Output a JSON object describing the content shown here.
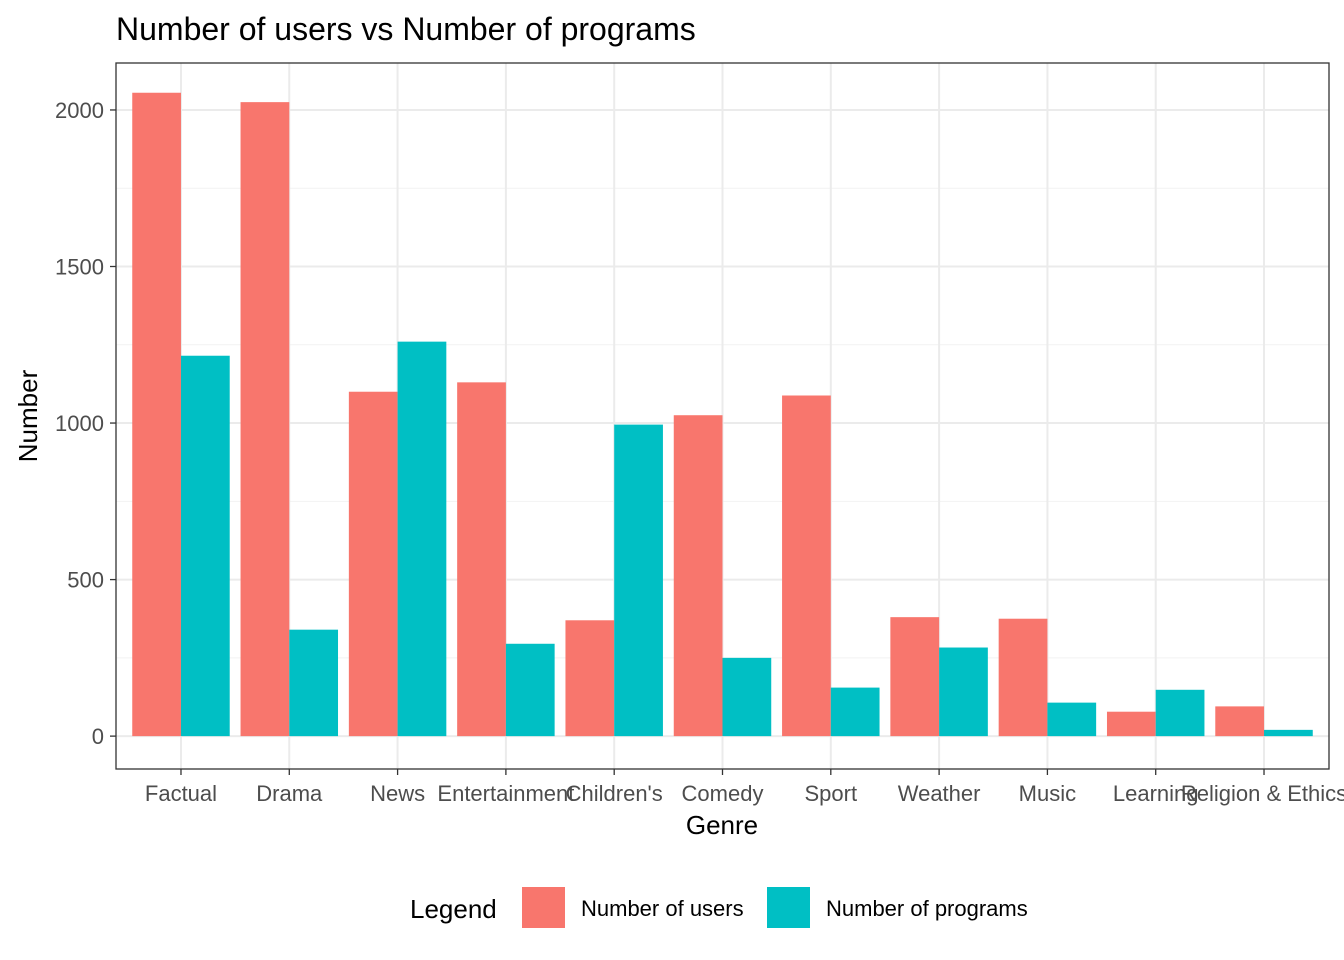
{
  "chart_data": {
    "type": "bar",
    "title": "Number of users vs Number of programs",
    "xlabel": "Genre",
    "ylabel": "Number",
    "categories": [
      "Factual",
      "Drama",
      "News",
      "Entertainment",
      "Children's",
      "Comedy",
      "Sport",
      "Weather",
      "Music",
      "Learning",
      "Religion & Ethics"
    ],
    "series": [
      {
        "name": "Number of users",
        "color": "#F8766D",
        "values": [
          2055,
          2025,
          1100,
          1130,
          370,
          1025,
          1088,
          380,
          375,
          78,
          95
        ]
      },
      {
        "name": "Number of programs",
        "color": "#00BFC4",
        "values": [
          1215,
          340,
          1260,
          295,
          995,
          250,
          155,
          283,
          107,
          148,
          20
        ]
      }
    ],
    "ylim": [
      -105,
      2150
    ],
    "yticks": [
      0,
      500,
      1000,
      1500,
      2000
    ],
    "grid": true,
    "legend": {
      "title": "Legend",
      "placement": "bottom"
    }
  }
}
